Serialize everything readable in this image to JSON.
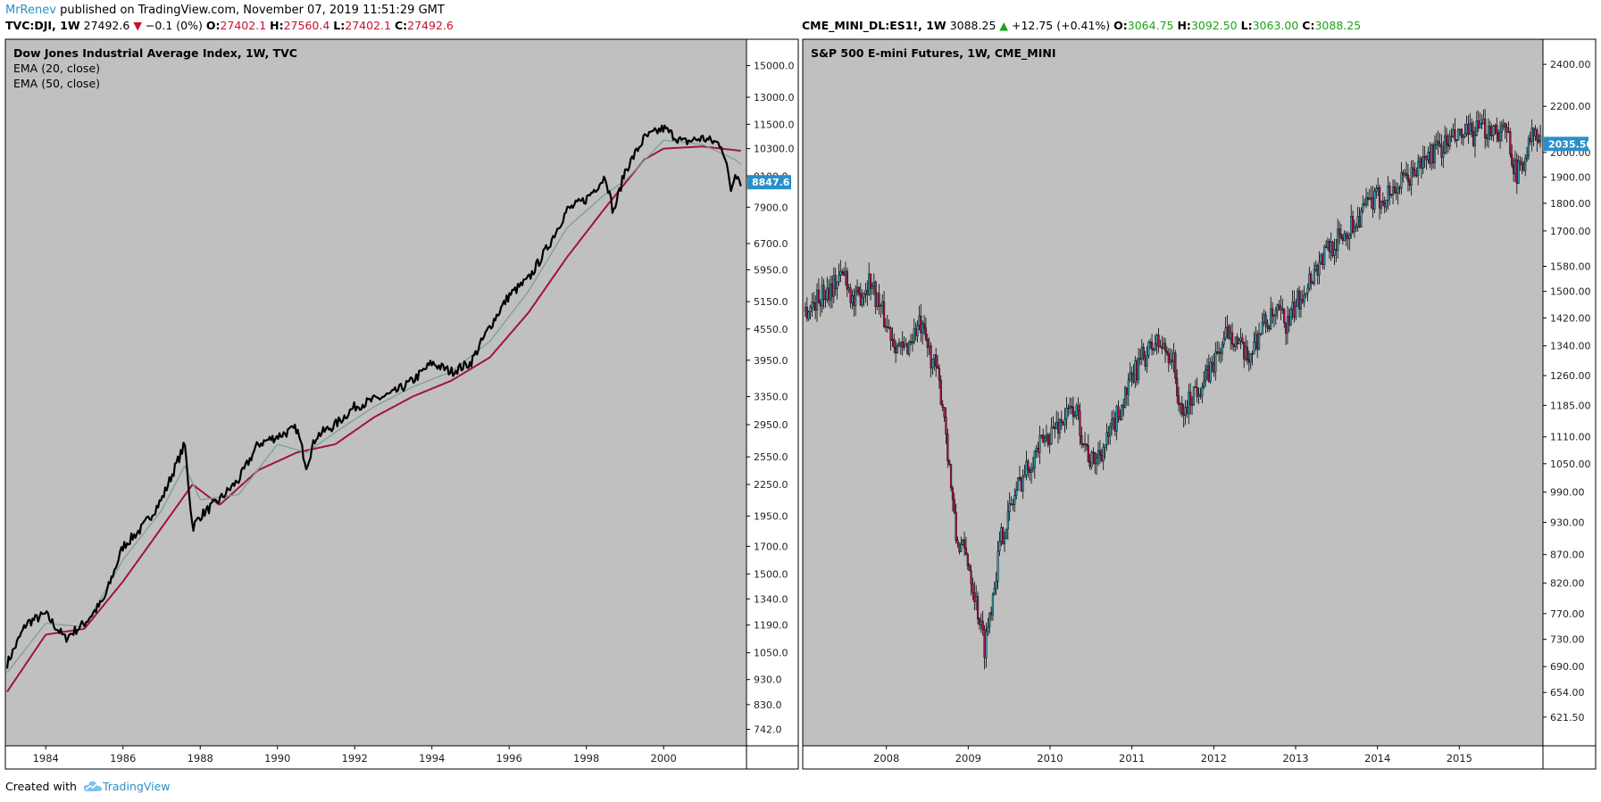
{
  "header": {
    "author": "MrRenev",
    "published_text": " published on TradingView.com, November 07, 2019 11:51:29 GMT"
  },
  "tickers": {
    "left": {
      "symbol": "TVC:DJI, 1W",
      "price": "27492.6",
      "change": "−0.1 (0%)",
      "o_label": "O:",
      "o": "27402.1",
      "h_label": "H:",
      "h": "27560.4",
      "l_label": "L:",
      "l": "27402.1",
      "c_label": "C:",
      "c": "27492.6"
    },
    "right": {
      "symbol": "CME_MINI_DL:ES1!, 1W",
      "price": "3088.25",
      "change": "+12.75 (+0.41%)",
      "o_label": "O:",
      "o": "3064.75",
      "h_label": "H:",
      "h": "3092.50",
      "l_label": "L:",
      "l": "3063.00",
      "c_label": "C:",
      "c": "3088.25"
    }
  },
  "footer": {
    "created_with": "Created with",
    "brand": "TradingView"
  },
  "colors": {
    "plot_bg": "#c0c0c0",
    "ema20": "#7a9f9b",
    "ema50": "#a0114c",
    "price": "#000000",
    "badge": "#2a8fc9",
    "candle_up": "#2e9fb0",
    "candle_down": "#b0114c"
  },
  "chart_data": [
    {
      "type": "line",
      "title": "Dow Jones Industrial Average Index, 1W, TVC",
      "legend": [
        "EMA (20, close)",
        "EMA (50, close)"
      ],
      "log_scale": true,
      "x_ticks": [
        "1984",
        "1986",
        "1988",
        "1990",
        "1992",
        "1994",
        "1996",
        "1998",
        "2000"
      ],
      "xlim": [
        1983.0,
        2002.1
      ],
      "y_ticks": [
        "15000.0",
        "13000.0",
        "11500.0",
        "10300.0",
        "9100.0",
        "7900.0",
        "6700.0",
        "5950.0",
        "5150.0",
        "4550.0",
        "3950.0",
        "3350.0",
        "2950.0",
        "2550.0",
        "2250.0",
        "1950.0",
        "1700.0",
        "1500.0",
        "1340.0",
        "1190.0",
        "1050.0",
        "930.0",
        "830.0",
        "742.0"
      ],
      "ylim": [
        700,
        16500
      ],
      "last_value_label": "8847.6",
      "series": [
        {
          "name": "DJI",
          "x": [
            1983.0,
            1983.5,
            1984.0,
            1984.5,
            1985.0,
            1985.5,
            1986.0,
            1986.5,
            1987.0,
            1987.6,
            1987.8,
            1988.0,
            1988.5,
            1989.0,
            1989.5,
            1990.0,
            1990.5,
            1990.75,
            1991.0,
            1991.5,
            1992.0,
            1992.5,
            1993.0,
            1993.5,
            1994.0,
            1994.5,
            1995.0,
            1995.5,
            1996.0,
            1996.5,
            1997.0,
            1997.5,
            1998.0,
            1998.5,
            1998.7,
            1999.0,
            1999.5,
            2000.0,
            2000.5,
            2001.0,
            2001.5,
            2001.7,
            2001.75,
            2001.85,
            2002.0
          ],
          "values": [
            1000,
            1200,
            1250,
            1120,
            1200,
            1330,
            1700,
            1850,
            2100,
            2700,
            1850,
            1950,
            2100,
            2300,
            2700,
            2800,
            2900,
            2450,
            2800,
            2950,
            3200,
            3300,
            3400,
            3600,
            3900,
            3750,
            3900,
            4600,
            5300,
            5700,
            6600,
            7800,
            8200,
            9100,
            7700,
            9300,
            10800,
            11300,
            10600,
            10800,
            10500,
            9000,
            8500,
            9300,
            8850
          ]
        },
        {
          "name": "EMA (20, close)",
          "x": [
            1983.0,
            1984.0,
            1985.0,
            1986.0,
            1987.0,
            1987.6,
            1988.0,
            1989.0,
            1990.0,
            1990.75,
            1991.5,
            1992.5,
            1993.5,
            1994.5,
            1995.5,
            1996.5,
            1997.5,
            1998.5,
            1999.0,
            2000.0,
            2001.0,
            2001.85,
            2002.0
          ],
          "values": [
            960,
            1200,
            1180,
            1600,
            2000,
            2450,
            2100,
            2150,
            2700,
            2600,
            2850,
            3200,
            3500,
            3750,
            4300,
            5400,
            7200,
            8400,
            8900,
            10700,
            10500,
            9800,
            9600
          ]
        },
        {
          "name": "EMA (50, close)",
          "x": [
            1983.0,
            1984.0,
            1985.0,
            1986.0,
            1987.0,
            1987.8,
            1988.5,
            1989.5,
            1990.5,
            1991.5,
            1992.5,
            1993.5,
            1994.5,
            1995.5,
            1996.5,
            1997.5,
            1998.5,
            1999.5,
            2000.0,
            2001.0,
            2002.0
          ],
          "values": [
            880,
            1140,
            1170,
            1450,
            1850,
            2250,
            2050,
            2400,
            2600,
            2700,
            3050,
            3350,
            3600,
            4000,
            4900,
            6300,
            7900,
            9800,
            10300,
            10400,
            10200
          ]
        }
      ]
    },
    {
      "type": "candlestick",
      "title": "S&P 500 E-mini Futures, 1W, CME_MINI",
      "log_scale": true,
      "x_ticks": [
        "2008",
        "2009",
        "2010",
        "2011",
        "2012",
        "2013",
        "2014",
        "2015"
      ],
      "xlim": [
        2007.0,
        2016.0
      ],
      "y_ticks": [
        "2400.00",
        "2200.00",
        "2000.00",
        "1900.00",
        "1800.00",
        "1700.00",
        "1580.00",
        "1500.00",
        "1420.00",
        "1340.00",
        "1260.00",
        "1185.00",
        "1110.00",
        "1050.00",
        "990.00",
        "930.00",
        "870.00",
        "820.00",
        "770.00",
        "730.00",
        "690.00",
        "654.00",
        "621.50"
      ],
      "ylim": [
        590,
        2500
      ],
      "last_value_label": "2035.50",
      "series": [
        {
          "name": "ES1!",
          "x": [
            2007.0,
            2007.3,
            2007.5,
            2007.6,
            2007.8,
            2008.0,
            2008.2,
            2008.4,
            2008.6,
            2008.7,
            2008.85,
            2009.0,
            2009.2,
            2009.4,
            2009.6,
            2009.8,
            2010.0,
            2010.3,
            2010.5,
            2010.7,
            2010.9,
            2011.1,
            2011.3,
            2011.5,
            2011.6,
            2011.75,
            2011.9,
            2012.2,
            2012.4,
            2012.6,
            2012.8,
            2012.9,
            2013.1,
            2013.4,
            2013.6,
            2013.9,
            2014.1,
            2014.4,
            2014.6,
            2014.9,
            2015.1,
            2015.4,
            2015.6,
            2015.7,
            2015.9,
            2016.0
          ],
          "values": [
            1440,
            1510,
            1560,
            1460,
            1540,
            1400,
            1320,
            1400,
            1280,
            1180,
            900,
            860,
            720,
            900,
            1000,
            1070,
            1120,
            1180,
            1050,
            1100,
            1200,
            1300,
            1350,
            1310,
            1150,
            1220,
            1250,
            1390,
            1300,
            1400,
            1430,
            1400,
            1510,
            1640,
            1690,
            1800,
            1830,
            1900,
            1980,
            2050,
            2070,
            2110,
            2070,
            1900,
            2080,
            2035
          ]
        }
      ]
    }
  ]
}
